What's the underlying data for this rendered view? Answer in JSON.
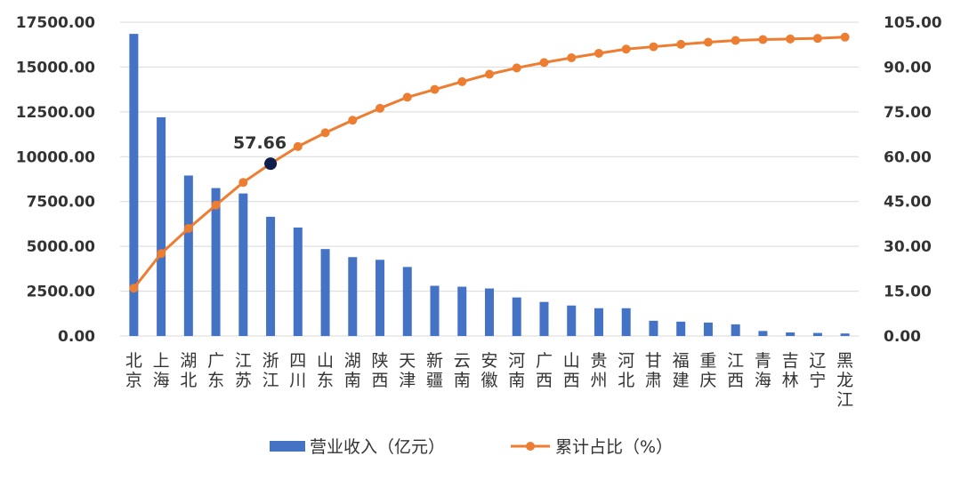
{
  "chart_data": {
    "type": "bar",
    "categories": [
      "北京",
      "上海",
      "湖北",
      "广东",
      "江苏",
      "浙江",
      "四川",
      "山东",
      "湖南",
      "陕西",
      "天津",
      "新疆",
      "云南",
      "安徽",
      "河南",
      "广西",
      "山西",
      "贵州",
      "河北",
      "甘肃",
      "福建",
      "重庆",
      "江西",
      "青海",
      "吉林",
      "辽宁",
      "黑龙江"
    ],
    "series": [
      {
        "name": "营业收入（亿元）",
        "type": "bar",
        "axis": "left",
        "color": "#4472C4",
        "values": [
          16850,
          12200,
          8950,
          8250,
          7950,
          6650,
          6050,
          4850,
          4400,
          4250,
          3850,
          2800,
          2750,
          2650,
          2150,
          1900,
          1700,
          1550,
          1550,
          850,
          800,
          750,
          650,
          280,
          200,
          170,
          140
        ]
      },
      {
        "name": "累计占比（%）",
        "type": "line",
        "axis": "right",
        "color": "#ED7D31",
        "values": [
          16.0,
          27.6,
          36.0,
          43.8,
          51.4,
          57.66,
          63.4,
          68.0,
          72.2,
          76.2,
          79.9,
          82.5,
          85.1,
          87.6,
          89.7,
          91.5,
          93.1,
          94.6,
          96.0,
          96.8,
          97.6,
          98.3,
          98.9,
          99.2,
          99.4,
          99.6,
          100.0
        ]
      }
    ],
    "y_left": {
      "min": 0,
      "max": 17500,
      "step": 2500,
      "tick_labels": [
        "0.00",
        "2500.00",
        "5000.00",
        "7500.00",
        "10000.00",
        "12500.00",
        "15000.00",
        "17500.00"
      ]
    },
    "y_right": {
      "min": 0,
      "max": 105,
      "step": 15,
      "tick_labels": [
        "0.00",
        "15.00",
        "30.00",
        "45.00",
        "60.00",
        "75.00",
        "90.00",
        "105.00"
      ]
    },
    "annotation": {
      "index": 5,
      "label": "57.66",
      "marker_color": "#0F1F4B"
    },
    "grid": true,
    "legend": {
      "position": "bottom"
    },
    "grid_color": "#D9D9D9"
  }
}
